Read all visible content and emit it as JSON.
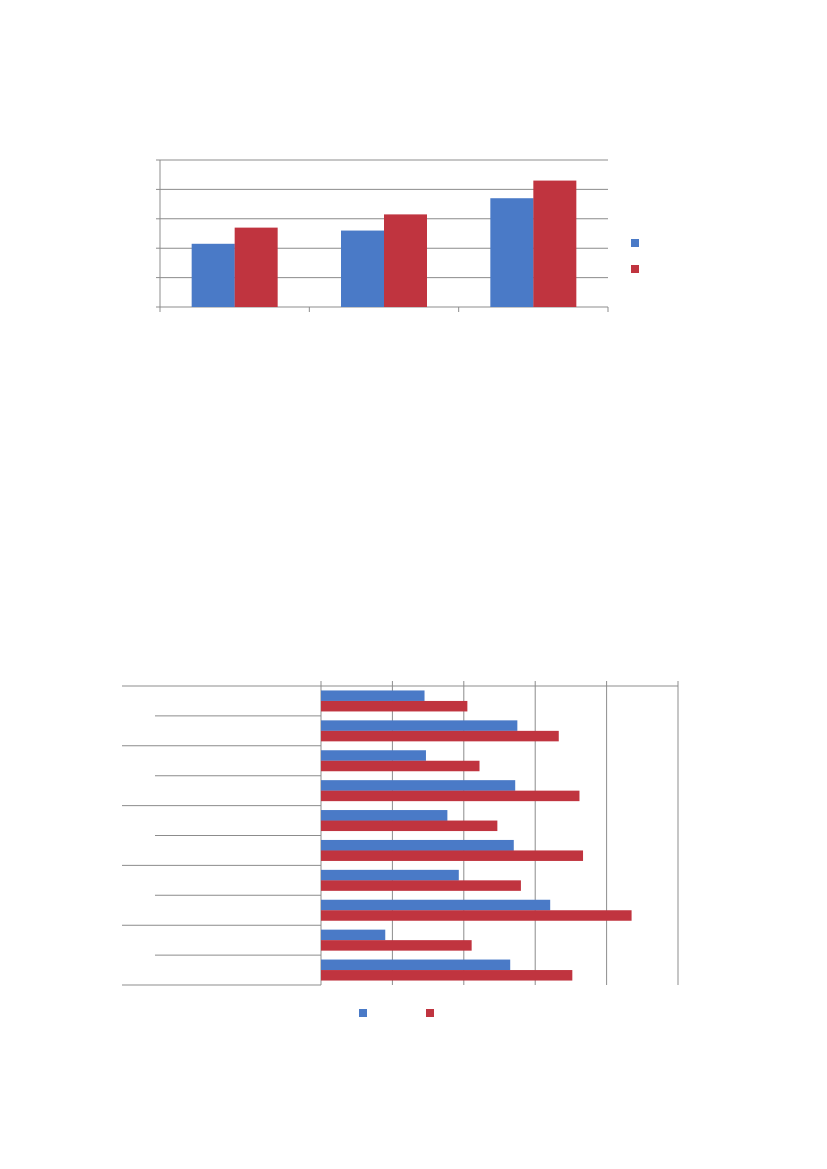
{
  "chart_data": [
    {
      "type": "bar",
      "orientation": "vertical",
      "categories": [
        "",
        "",
        ""
      ],
      "series": [
        {
          "values": [
            2.15,
            2.6,
            3.7
          ],
          "color": "#4a7ac7"
        },
        {
          "values": [
            2.7,
            3.15,
            4.3
          ],
          "color": "#c0343f"
        }
      ],
      "ylim": [
        0,
        5
      ],
      "grid": true,
      "legend": "right"
    },
    {
      "type": "bar",
      "orientation": "horizontal",
      "categories": [
        "",
        "",
        "",
        "",
        "",
        "",
        "",
        "",
        "",
        ""
      ],
      "series": [
        {
          "values": [
            1.45,
            2.75,
            1.47,
            2.72,
            1.77,
            2.7,
            1.93,
            3.21,
            0.9,
            2.65
          ],
          "color": "#4a7ac7"
        },
        {
          "values": [
            2.05,
            3.33,
            2.22,
            3.62,
            2.47,
            3.67,
            2.8,
            4.35,
            2.11,
            3.52
          ],
          "color": "#c0343f"
        }
      ],
      "xlim": [
        0,
        5
      ],
      "grid": true,
      "legend": "bottom"
    }
  ]
}
